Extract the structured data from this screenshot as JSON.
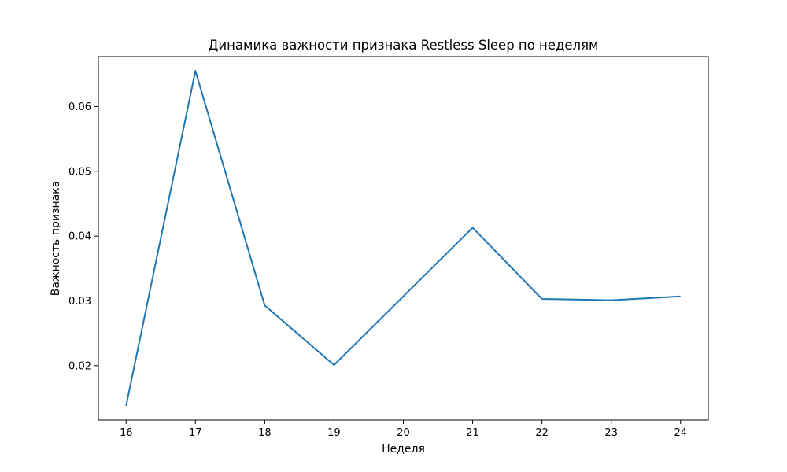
{
  "chart_data": {
    "type": "line",
    "title": "Динамика важности признака Restless Sleep по неделям",
    "xlabel": "Неделя",
    "ylabel": "Важность признака",
    "x": [
      16,
      17,
      18,
      19,
      20,
      21,
      22,
      23,
      24
    ],
    "series": [
      {
        "values": [
          0.0138,
          0.0655,
          0.0293,
          0.0201,
          0.0307,
          0.0413,
          0.0303,
          0.0301,
          0.0307
        ],
        "color": "#1f77b4"
      }
    ],
    "xlim": [
      15.6,
      24.4
    ],
    "ylim": [
      0.0116,
      0.0677
    ],
    "xticks": [
      "16",
      "17",
      "18",
      "19",
      "20",
      "21",
      "22",
      "23",
      "24"
    ],
    "yticks": [
      "0.02",
      "0.03",
      "0.04",
      "0.05",
      "0.06"
    ],
    "grid": false,
    "legend": "none"
  }
}
